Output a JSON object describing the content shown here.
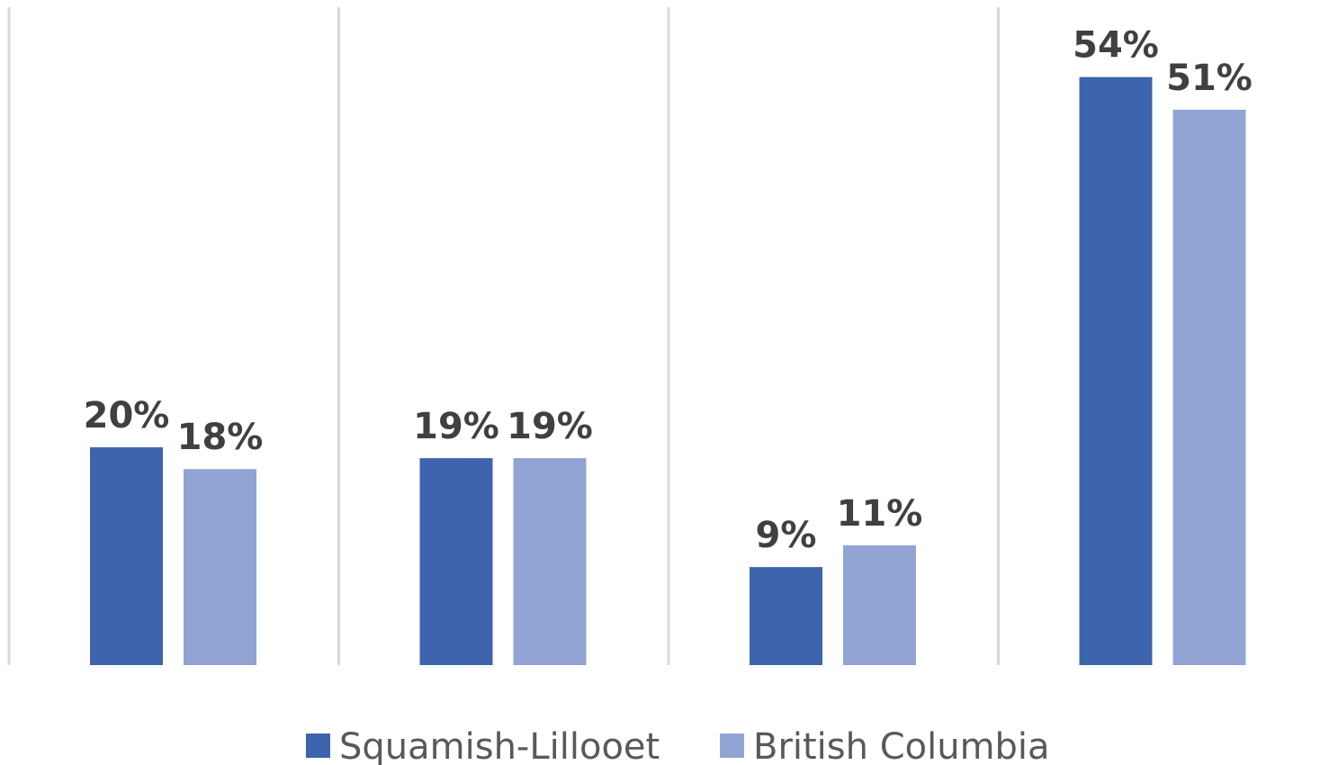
{
  "chart_data": {
    "type": "bar",
    "categories": [
      "",
      "",
      "",
      ""
    ],
    "series": [
      {
        "name": "Squamish-Lillooet",
        "values": [
          20,
          19,
          9,
          54
        ],
        "labels": [
          "20%",
          "19%",
          "9%",
          "54%"
        ]
      },
      {
        "name": "British Columbia",
        "values": [
          18,
          19,
          11,
          51
        ],
        "labels": [
          "18%",
          "19%",
          "11%",
          "51%"
        ]
      }
    ],
    "title": "",
    "xlabel": "",
    "ylabel": "",
    "ylim": [
      0,
      60
    ],
    "grid": "vertical category separators",
    "legend": "bottom-center",
    "colors": [
      "#3d64ad",
      "#91a4d4"
    ]
  }
}
